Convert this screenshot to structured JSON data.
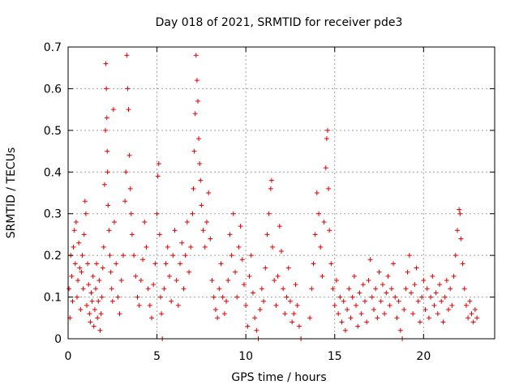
{
  "chart_data": {
    "type": "scatter",
    "title": "Day 018 of 2021, SRMTID for receiver pde3",
    "xlabel": "GPS time / hours",
    "ylabel": "SRMTID / TECUs",
    "xlim": [
      0,
      24
    ],
    "ylim": [
      0,
      0.7
    ],
    "xticks": [
      0,
      5,
      10,
      15,
      20
    ],
    "xtick_labels": [
      "0",
      "5",
      "10",
      "15",
      "20"
    ],
    "yticks": [
      0,
      0.1,
      0.2,
      0.3,
      0.4,
      0.5,
      0.6,
      0.7
    ],
    "ytick_labels": [
      "0",
      "0.1",
      "0.2",
      "0.3",
      "0.4",
      "0.5",
      "0.6",
      "0.7"
    ],
    "grid": true,
    "marker": "plus",
    "marker_color": "#dd0000",
    "series": [
      {
        "name": "SRMTID",
        "points": [
          [
            0.05,
            0.12
          ],
          [
            0.1,
            0.05
          ],
          [
            0.15,
            0.2
          ],
          [
            0.2,
            0.15
          ],
          [
            0.25,
            0.09
          ],
          [
            0.3,
            0.22
          ],
          [
            0.35,
            0.26
          ],
          [
            0.4,
            0.18
          ],
          [
            0.45,
            0.28
          ],
          [
            0.5,
            0.1
          ],
          [
            0.55,
            0.14
          ],
          [
            0.6,
            0.23
          ],
          [
            0.65,
            0.17
          ],
          [
            0.7,
            0.07
          ],
          [
            0.75,
            0.16
          ],
          [
            0.8,
            0.2
          ],
          [
            0.85,
            0.12
          ],
          [
            0.9,
            0.25
          ],
          [
            0.95,
            0.33
          ],
          [
            1.0,
            0.3
          ],
          [
            1.05,
            0.08
          ],
          [
            1.1,
            0.18
          ],
          [
            1.15,
            0.13
          ],
          [
            1.2,
            0.06
          ],
          [
            1.25,
            0.04
          ],
          [
            1.3,
            0.11
          ],
          [
            1.35,
            0.09
          ],
          [
            1.4,
            0.15
          ],
          [
            1.45,
            0.03
          ],
          [
            1.5,
            0.07
          ],
          [
            1.55,
            0.12
          ],
          [
            1.6,
            0.18
          ],
          [
            1.65,
            0.05
          ],
          [
            1.7,
            0.09
          ],
          [
            1.75,
            0.14
          ],
          [
            1.8,
            0.02
          ],
          [
            1.85,
            0.06
          ],
          [
            1.9,
            0.1
          ],
          [
            1.95,
            0.17
          ],
          [
            2.0,
            0.22
          ],
          [
            2.05,
            0.37
          ],
          [
            2.1,
            0.5
          ],
          [
            2.12,
            0.66
          ],
          [
            2.15,
            0.6
          ],
          [
            2.18,
            0.53
          ],
          [
            2.2,
            0.45
          ],
          [
            2.22,
            0.4
          ],
          [
            2.25,
            0.32
          ],
          [
            2.3,
            0.26
          ],
          [
            2.35,
            0.2
          ],
          [
            2.4,
            0.16
          ],
          [
            2.45,
            0.12
          ],
          [
            2.5,
            0.09
          ],
          [
            2.55,
            0.55
          ],
          [
            2.6,
            0.28
          ],
          [
            2.7,
            0.18
          ],
          [
            2.8,
            0.1
          ],
          [
            2.9,
            0.06
          ],
          [
            3.0,
            0.14
          ],
          [
            3.1,
            0.2
          ],
          [
            3.2,
            0.33
          ],
          [
            3.25,
            0.4
          ],
          [
            3.3,
            0.68
          ],
          [
            3.35,
            0.6
          ],
          [
            3.4,
            0.55
          ],
          [
            3.45,
            0.44
          ],
          [
            3.5,
            0.36
          ],
          [
            3.55,
            0.3
          ],
          [
            3.6,
            0.25
          ],
          [
            3.7,
            0.2
          ],
          [
            3.8,
            0.15
          ],
          [
            3.9,
            0.1
          ],
          [
            4.0,
            0.08
          ],
          [
            4.1,
            0.14
          ],
          [
            4.2,
            0.19
          ],
          [
            4.3,
            0.28
          ],
          [
            4.4,
            0.22
          ],
          [
            4.5,
            0.12
          ],
          [
            4.6,
            0.08
          ],
          [
            4.7,
            0.05
          ],
          [
            4.8,
            0.13
          ],
          [
            4.9,
            0.18
          ],
          [
            5.0,
            0.3
          ],
          [
            5.05,
            0.39
          ],
          [
            5.1,
            0.42
          ],
          [
            5.15,
            0.25
          ],
          [
            5.2,
            0.1
          ],
          [
            5.25,
            0.06
          ],
          [
            5.3,
            0.0
          ],
          [
            5.4,
            0.12
          ],
          [
            5.5,
            0.18
          ],
          [
            5.6,
            0.22
          ],
          [
            5.7,
            0.15
          ],
          [
            5.8,
            0.09
          ],
          [
            5.9,
            0.2
          ],
          [
            6.0,
            0.26
          ],
          [
            6.1,
            0.14
          ],
          [
            6.2,
            0.08
          ],
          [
            6.3,
            0.18
          ],
          [
            6.4,
            0.23
          ],
          [
            6.5,
            0.12
          ],
          [
            6.6,
            0.2
          ],
          [
            6.7,
            0.28
          ],
          [
            6.8,
            0.16
          ],
          [
            6.9,
            0.22
          ],
          [
            7.0,
            0.3
          ],
          [
            7.05,
            0.36
          ],
          [
            7.1,
            0.45
          ],
          [
            7.15,
            0.54
          ],
          [
            7.2,
            0.68
          ],
          [
            7.25,
            0.62
          ],
          [
            7.3,
            0.57
          ],
          [
            7.35,
            0.48
          ],
          [
            7.4,
            0.42
          ],
          [
            7.45,
            0.38
          ],
          [
            7.5,
            0.32
          ],
          [
            7.6,
            0.26
          ],
          [
            7.7,
            0.22
          ],
          [
            7.8,
            0.28
          ],
          [
            7.9,
            0.35
          ],
          [
            8.0,
            0.24
          ],
          [
            8.1,
            0.14
          ],
          [
            8.2,
            0.1
          ],
          [
            8.3,
            0.07
          ],
          [
            8.4,
            0.05
          ],
          [
            8.5,
            0.12
          ],
          [
            8.6,
            0.18
          ],
          [
            8.7,
            0.1
          ],
          [
            8.8,
            0.06
          ],
          [
            8.9,
            0.09
          ],
          [
            9.0,
            0.14
          ],
          [
            9.1,
            0.25
          ],
          [
            9.2,
            0.2
          ],
          [
            9.3,
            0.3
          ],
          [
            9.4,
            0.16
          ],
          [
            9.5,
            0.1
          ],
          [
            9.6,
            0.22
          ],
          [
            9.7,
            0.27
          ],
          [
            9.8,
            0.19
          ],
          [
            9.9,
            0.13
          ],
          [
            10.0,
            0.08
          ],
          [
            10.1,
            0.03
          ],
          [
            10.2,
            0.15
          ],
          [
            10.3,
            0.2
          ],
          [
            10.4,
            0.11
          ],
          [
            10.5,
            0.05
          ],
          [
            10.6,
            0.02
          ],
          [
            10.7,
            0.0
          ],
          [
            10.8,
            0.07
          ],
          [
            10.9,
            0.12
          ],
          [
            11.0,
            0.09
          ],
          [
            11.1,
            0.17
          ],
          [
            11.2,
            0.25
          ],
          [
            11.3,
            0.3
          ],
          [
            11.4,
            0.36
          ],
          [
            11.45,
            0.38
          ],
          [
            11.5,
            0.22
          ],
          [
            11.6,
            0.14
          ],
          [
            11.7,
            0.08
          ],
          [
            11.8,
            0.15
          ],
          [
            11.9,
            0.27
          ],
          [
            12.0,
            0.21
          ],
          [
            12.1,
            0.12
          ],
          [
            12.2,
            0.06
          ],
          [
            12.3,
            0.1
          ],
          [
            12.4,
            0.17
          ],
          [
            12.5,
            0.09
          ],
          [
            12.6,
            0.04
          ],
          [
            12.7,
            0.06
          ],
          [
            12.8,
            0.13
          ],
          [
            12.9,
            0.08
          ],
          [
            13.0,
            0.03
          ],
          [
            13.1,
            0.0
          ],
          [
            13.6,
            0.05
          ],
          [
            13.7,
            0.12
          ],
          [
            13.8,
            0.18
          ],
          [
            13.9,
            0.25
          ],
          [
            14.0,
            0.35
          ],
          [
            14.1,
            0.3
          ],
          [
            14.2,
            0.22
          ],
          [
            14.3,
            0.15
          ],
          [
            14.4,
            0.28
          ],
          [
            14.5,
            0.41
          ],
          [
            14.55,
            0.48
          ],
          [
            14.6,
            0.5
          ],
          [
            14.65,
            0.36
          ],
          [
            14.7,
            0.26
          ],
          [
            14.8,
            0.18
          ],
          [
            14.9,
            0.12
          ],
          [
            15.0,
            0.08
          ],
          [
            15.1,
            0.14
          ],
          [
            15.2,
            0.06
          ],
          [
            15.3,
            0.1
          ],
          [
            15.4,
            0.04
          ],
          [
            15.5,
            0.09
          ],
          [
            15.6,
            0.02
          ],
          [
            15.7,
            0.07
          ],
          [
            15.8,
            0.12
          ],
          [
            15.9,
            0.05
          ],
          [
            16.0,
            0.1
          ],
          [
            16.1,
            0.15
          ],
          [
            16.2,
            0.08
          ],
          [
            16.3,
            0.03
          ],
          [
            16.4,
            0.11
          ],
          [
            16.5,
            0.06
          ],
          [
            16.6,
            0.13
          ],
          [
            16.7,
            0.09
          ],
          [
            16.8,
            0.04
          ],
          [
            16.9,
            0.14
          ],
          [
            17.0,
            0.19
          ],
          [
            17.1,
            0.1
          ],
          [
            17.2,
            0.07
          ],
          [
            17.3,
            0.12
          ],
          [
            17.4,
            0.05
          ],
          [
            17.5,
            0.16
          ],
          [
            17.6,
            0.09
          ],
          [
            17.7,
            0.13
          ],
          [
            17.8,
            0.06
          ],
          [
            17.9,
            0.11
          ],
          [
            18.0,
            0.15
          ],
          [
            18.1,
            0.08
          ],
          [
            18.2,
            0.12
          ],
          [
            18.3,
            0.18
          ],
          [
            18.4,
            0.1
          ],
          [
            18.5,
            0.05
          ],
          [
            18.6,
            0.09
          ],
          [
            18.7,
            0.02
          ],
          [
            18.8,
            0.0
          ],
          [
            18.9,
            0.07
          ],
          [
            19.0,
            0.12
          ],
          [
            19.1,
            0.16
          ],
          [
            19.2,
            0.2
          ],
          [
            19.3,
            0.11
          ],
          [
            19.4,
            0.06
          ],
          [
            19.5,
            0.13
          ],
          [
            19.6,
            0.17
          ],
          [
            19.7,
            0.09
          ],
          [
            19.8,
            0.04
          ],
          [
            19.9,
            0.1
          ],
          [
            20.0,
            0.14
          ],
          [
            20.1,
            0.07
          ],
          [
            20.2,
            0.12
          ],
          [
            20.3,
            0.05
          ],
          [
            20.4,
            0.1
          ],
          [
            20.5,
            0.15
          ],
          [
            20.6,
            0.08
          ],
          [
            20.7,
            0.11
          ],
          [
            20.8,
            0.06
          ],
          [
            20.9,
            0.13
          ],
          [
            21.0,
            0.09
          ],
          [
            21.1,
            0.04
          ],
          [
            21.2,
            0.1
          ],
          [
            21.3,
            0.14
          ],
          [
            21.4,
            0.07
          ],
          [
            21.5,
            0.12
          ],
          [
            21.6,
            0.08
          ],
          [
            21.7,
            0.15
          ],
          [
            21.8,
            0.2
          ],
          [
            21.9,
            0.26
          ],
          [
            22.0,
            0.31
          ],
          [
            22.05,
            0.3
          ],
          [
            22.1,
            0.24
          ],
          [
            22.2,
            0.18
          ],
          [
            22.3,
            0.12
          ],
          [
            22.4,
            0.08
          ],
          [
            22.5,
            0.05
          ],
          [
            22.6,
            0.09
          ],
          [
            22.7,
            0.06
          ],
          [
            22.8,
            0.04
          ],
          [
            22.9,
            0.07
          ],
          [
            23.0,
            0.05
          ]
        ]
      }
    ]
  }
}
